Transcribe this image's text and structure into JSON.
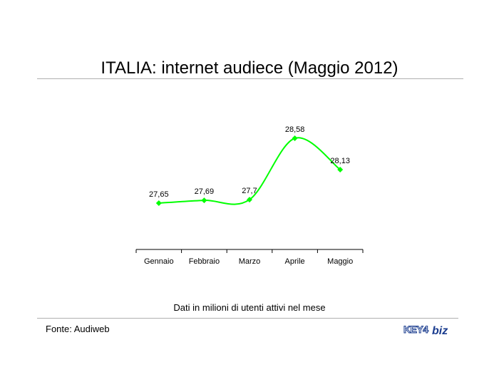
{
  "title": "ITALIA: internet audiece (Maggio 2012)",
  "note": "Dati in milioni di utenti attivi nel mese",
  "source": "Fonte: Audiweb",
  "logo": {
    "text_left": "KEY4",
    "text_right": "biz"
  },
  "chart_data": {
    "type": "line",
    "categories": [
      "Gennaio",
      "Febbraio",
      "Marzo",
      "Aprile",
      "Maggio"
    ],
    "series": [
      {
        "values": [
          27.65,
          27.69,
          27.7,
          28.58,
          28.13
        ],
        "color": "#00ff00"
      }
    ],
    "data_labels": [
      "27,65",
      "27,69",
      "27,7",
      "28,58",
      "28,13"
    ],
    "smooth": true,
    "marker": "diamond",
    "grid": false,
    "legend": "none"
  }
}
